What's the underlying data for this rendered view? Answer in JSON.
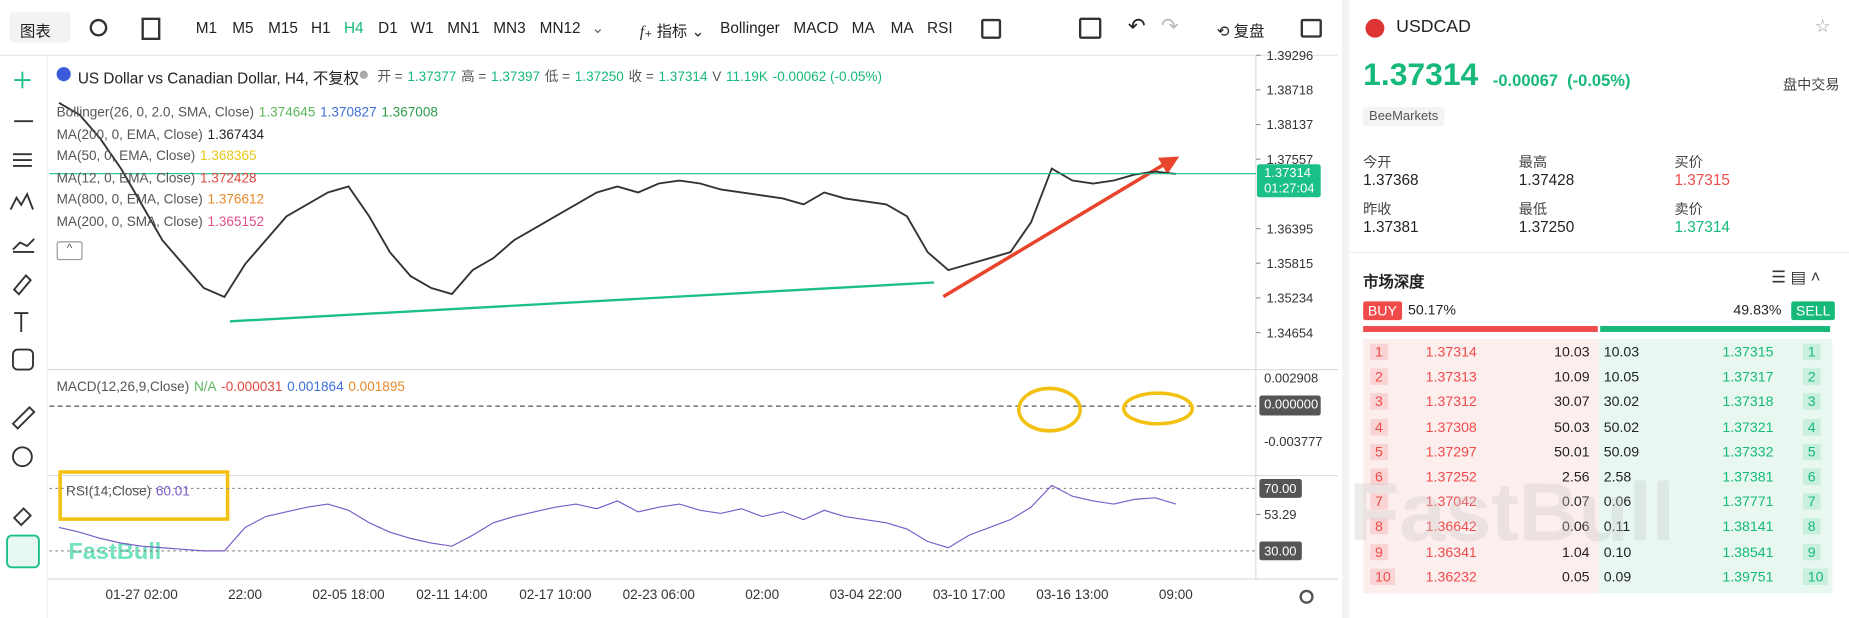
{
  "toolbar": {
    "chart_type": "图表",
    "timeframes": [
      "M1",
      "M5",
      "M15",
      "H1",
      "H4",
      "D1",
      "W1",
      "MN1",
      "MN3",
      "MN12"
    ],
    "active_timeframe": "H4",
    "indicators_button": "指标",
    "indicators": [
      "Bollinger",
      "MACD",
      "MA",
      "MA",
      "RSI"
    ],
    "replay": "复盘"
  },
  "legend": {
    "title": "US Dollar vs Canadian Dollar, H4, 不复权",
    "quote": [
      [
        "开 =",
        "1.37377"
      ],
      [
        "高 =",
        "1.37397"
      ],
      [
        "低 =",
        "1.37250"
      ],
      [
        "收 =",
        "1.37314"
      ],
      [
        "V",
        "11.19K"
      ],
      [
        "-0.00062 (-0.05%)"
      ]
    ],
    "indicators": [
      {
        "name": "Bollinger(26, 0, 2.0, SMA, Close)",
        "values": [
          "1.374645",
          "1.370827",
          "1.367008"
        ],
        "colors": [
          "#5cb85c",
          "#3f6fd8",
          "#2a9d4a"
        ]
      },
      {
        "name": "MA(200, 0, EMA, Close)",
        "values": [
          "1.367434"
        ],
        "colors": [
          "#222222"
        ]
      },
      {
        "name": "MA(50, 0, EMA, Close)",
        "values": [
          "1.368365"
        ],
        "colors": [
          "#e6c619"
        ]
      },
      {
        "name": "MA(12, 0, EMA, Close)",
        "values": [
          "1.372428"
        ],
        "colors": [
          "#e0463e"
        ]
      },
      {
        "name": "MA(800, 0, EMA, Close)",
        "values": [
          "1.376612"
        ],
        "colors": [
          "#e8892b"
        ]
      },
      {
        "name": "MA(200, 0, SMA, Close)",
        "values": [
          "1.365152"
        ],
        "colors": [
          "#e24e8a"
        ]
      }
    ]
  },
  "chart_data": {
    "type": "line",
    "color": "#333333",
    "categories": [
      null,
      null,
      null,
      null,
      "01-27 02:00",
      null,
      null,
      null,
      null,
      "22:00",
      null,
      null,
      null,
      null,
      "02-05 18:00",
      null,
      null,
      null,
      null,
      "02-11 14:00",
      null,
      null,
      null,
      null,
      "02-17 10:00",
      null,
      null,
      null,
      null,
      "02-23 06:00",
      null,
      null,
      null,
      null,
      "02:00",
      null,
      null,
      null,
      null,
      "03-04 22:00",
      null,
      null,
      null,
      null,
      "03-10 17:00",
      null,
      null,
      null,
      null,
      "03-16 13:00",
      null,
      null,
      null,
      null,
      "09:00"
    ],
    "values": [
      1.385,
      1.383,
      1.379,
      1.374,
      1.368,
      1.362,
      1.358,
      1.354,
      1.3525,
      1.358,
      1.362,
      1.366,
      1.368,
      1.37,
      1.371,
      1.366,
      1.36,
      1.356,
      1.354,
      1.353,
      1.357,
      1.359,
      1.362,
      1.364,
      1.366,
      1.368,
      1.37,
      1.371,
      1.37,
      1.3715,
      1.372,
      1.3715,
      1.3705,
      1.37,
      1.3695,
      1.369,
      1.368,
      1.37,
      1.369,
      1.3685,
      1.368,
      1.366,
      1.36,
      1.357,
      1.358,
      1.359,
      1.36,
      1.365,
      1.374,
      1.372,
      1.3715,
      1.372,
      1.373,
      1.3735,
      1.3731
    ],
    "ylim": [
      1.3431,
      1.39296
    ],
    "yticks": [
      {
        "value": 1.39296,
        "label": "1.39296"
      },
      {
        "value": 1.38718,
        "label": "1.38718"
      },
      {
        "value": 1.38137,
        "label": "1.38137"
      },
      {
        "value": 1.37557,
        "label": "1.37557"
      },
      {
        "value": 1.36395,
        "label": "1.36395"
      },
      {
        "value": 1.35815,
        "label": "1.35815"
      },
      {
        "value": 1.35234,
        "label": "1.35234"
      },
      {
        "value": 1.34654,
        "label": "1.34654"
      }
    ],
    "last_price": {
      "value": 1.37314,
      "label": "1.37314"
    },
    "countdown": "01:27:04"
  },
  "macd": {
    "title": "MACD(12,26,9,Close)",
    "values": [
      "N/A",
      "-0.000031",
      "0.001864",
      "0.001895"
    ],
    "axis": [
      "0.002908",
      "0.000000",
      "-0.003777"
    ]
  },
  "rsi": {
    "type": "line",
    "title": "RSI(14,Close)",
    "current": "60.01",
    "color": "#7b5cc9",
    "values": [
      45,
      42,
      38,
      35,
      33,
      32,
      31,
      30,
      30,
      45,
      52,
      55,
      58,
      60,
      56,
      48,
      42,
      38,
      35,
      33,
      40,
      48,
      52,
      55,
      58,
      60,
      57,
      62,
      55,
      58,
      60,
      56,
      54,
      57,
      52,
      55,
      50,
      56,
      52,
      50,
      48,
      44,
      36,
      32,
      40,
      45,
      50,
      58,
      72,
      65,
      62,
      60,
      63,
      64,
      60
    ],
    "ylim": [
      13.4,
      77.5
    ],
    "yticks": [
      {
        "value": 70,
        "label": "70.00"
      },
      {
        "value": 53.29,
        "label": "53.29"
      },
      {
        "value": 30,
        "label": "30.00"
      }
    ]
  },
  "watermark": "FastBull",
  "side": {
    "symbol": "USDCAD",
    "price": "1.37314",
    "change": "-0.00067",
    "change_pct": "(-0.05%)",
    "session": "盘中交易",
    "broker": "BeeMarkets",
    "stats": [
      [
        "今开",
        "1.37368"
      ],
      [
        "最高",
        "1.37428"
      ],
      [
        "买价",
        "1.37315"
      ],
      [
        "昨收",
        "1.37381"
      ],
      [
        "最低",
        "1.37250"
      ],
      [
        "卖价",
        "1.37314"
      ]
    ],
    "depth_title": "市场深度",
    "buy": "BUY",
    "sell": "SELL",
    "buy_pct": {
      "value": 50.17,
      "label": "50.17%"
    },
    "sell_pct": {
      "value": 49.83,
      "label": "49.83%"
    },
    "rows": [
      [
        "1",
        "1.37314",
        "10.03",
        "10.03",
        "1.37315",
        "1"
      ],
      [
        "2",
        "1.37313",
        "10.09",
        "10.05",
        "1.37317",
        "2"
      ],
      [
        "3",
        "1.37312",
        "30.07",
        "30.02",
        "1.37318",
        "3"
      ],
      [
        "4",
        "1.37308",
        "50.03",
        "50.02",
        "1.37321",
        "4"
      ],
      [
        "5",
        "1.37297",
        "50.01",
        "50.09",
        "1.37332",
        "5"
      ],
      [
        "6",
        "1.37252",
        "2.56",
        "2.58",
        "1.37381",
        "6"
      ],
      [
        "7",
        "1.37042",
        "0.07",
        "0.06",
        "1.37771",
        "7"
      ],
      [
        "8",
        "1.36642",
        "0.06",
        "0.11",
        "1.38141",
        "8"
      ],
      [
        "9",
        "1.36341",
        "1.04",
        "0.10",
        "1.38541",
        "9"
      ],
      [
        "10",
        "1.36232",
        "0.05",
        "0.09",
        "1.39751",
        "10"
      ]
    ]
  }
}
